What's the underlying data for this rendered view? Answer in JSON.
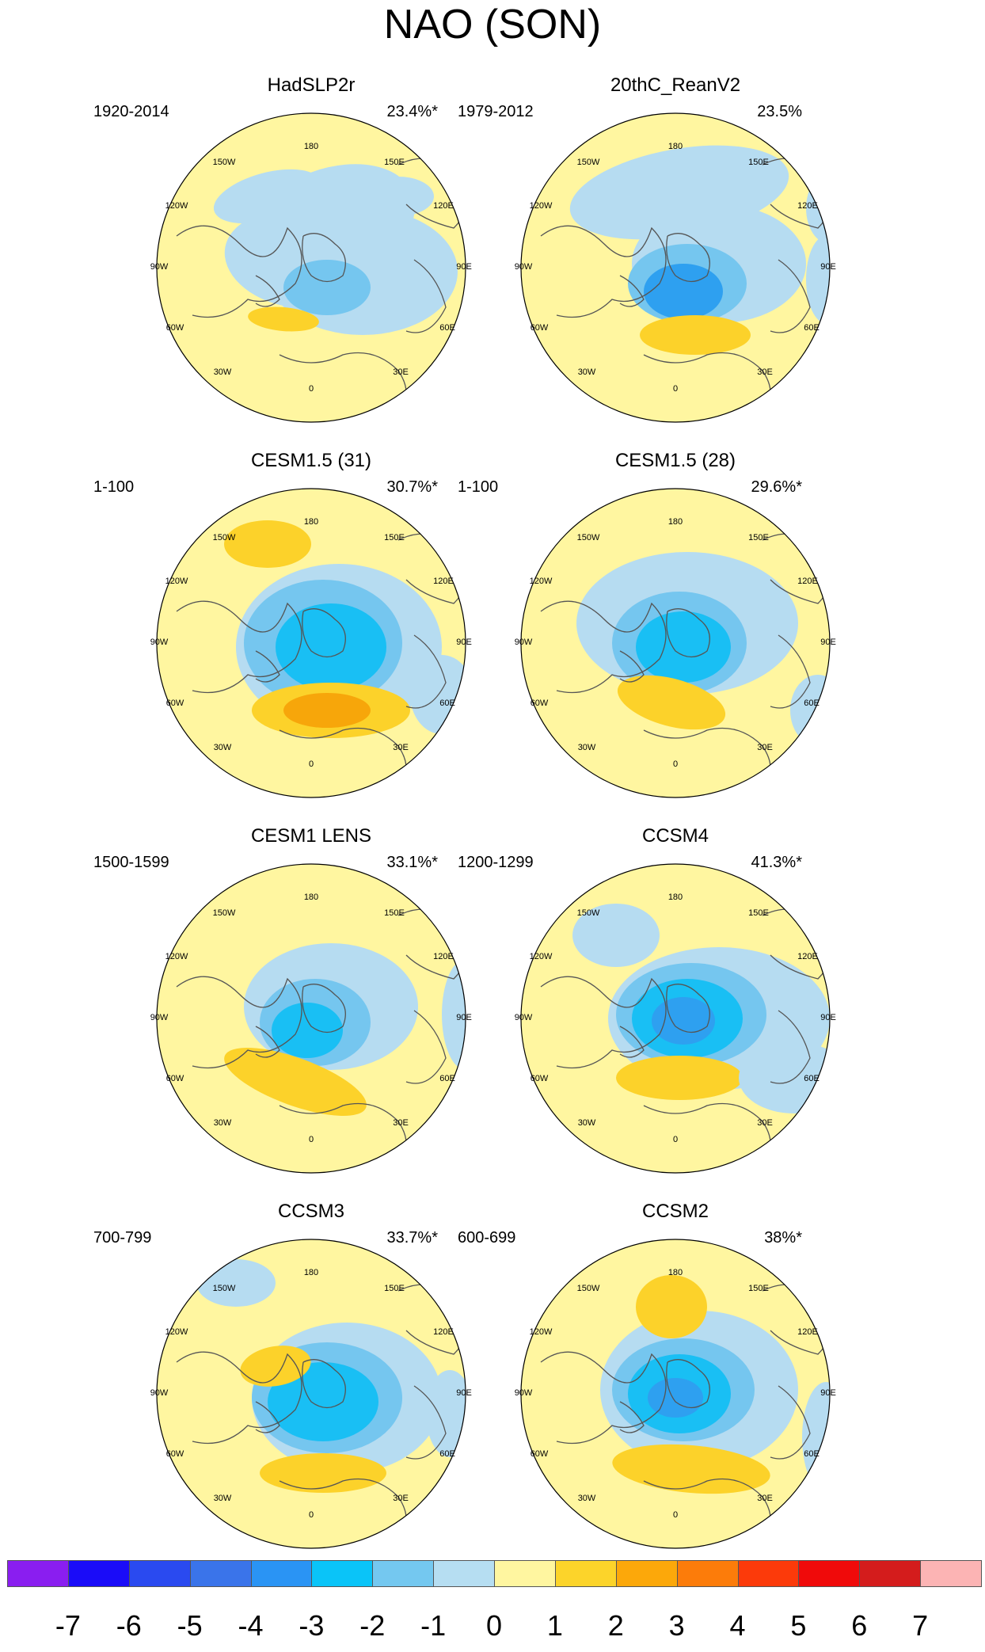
{
  "title": "NAO (SON)",
  "colors": {
    "positive_strong": "#fcd22a",
    "positive_orange": "#f7a60a",
    "negative_light": "#b6dcf1",
    "negative_mid": "#75c6ef",
    "negative_cyan": "#19bff4",
    "negative_blue": "#2ea0f0",
    "neutral": "#fff6a0",
    "coastline": "#555555"
  },
  "longitude_labels": {
    "top": "180",
    "top_left": "150W",
    "top_right": "150E",
    "upper_left": "120W",
    "upper_right": "120E",
    "left": "90W",
    "right": "90E",
    "lower_left": "60W",
    "lower_right": "60E",
    "bottom_left": "30W",
    "bottom_right": "30E",
    "bottom": "0"
  },
  "panels": [
    {
      "title": "HadSLP2r",
      "period": "1920-2014",
      "variance": "23.4%*"
    },
    {
      "title": "20thC_ReanV2",
      "period": "1979-2012",
      "variance": "23.5%"
    },
    {
      "title": "CESM1.5 (31)",
      "period": "1-100",
      "variance": "30.7%*"
    },
    {
      "title": "CESM1.5 (28)",
      "period": "1-100",
      "variance": "29.6%*"
    },
    {
      "title": "CESM1 LENS",
      "period": "1500-1599",
      "variance": "33.1%*"
    },
    {
      "title": "CCSM4",
      "period": "1200-1299",
      "variance": "41.3%*"
    },
    {
      "title": "CCSM3",
      "period": "700-799",
      "variance": "33.7%*"
    },
    {
      "title": "CCSM2",
      "period": "600-699",
      "variance": "38%*"
    }
  ],
  "colorbar": {
    "colors": [
      "#8a1ef0",
      "#1a0cf8",
      "#2a4af0",
      "#3a74ea",
      "#2a94f4",
      "#0ac4f8",
      "#74c8f0",
      "#b6def2",
      "#fff6a0",
      "#fcd42a",
      "#fca80a",
      "#fc7c0a",
      "#fc3a0a",
      "#f00a0a",
      "#d41c1c",
      "#fcb4b4"
    ],
    "labels": [
      "-7",
      "-6",
      "-5",
      "-4",
      "-3",
      "-2",
      "-1",
      "0",
      "1",
      "2",
      "3",
      "4",
      "5",
      "6",
      "7"
    ]
  }
}
